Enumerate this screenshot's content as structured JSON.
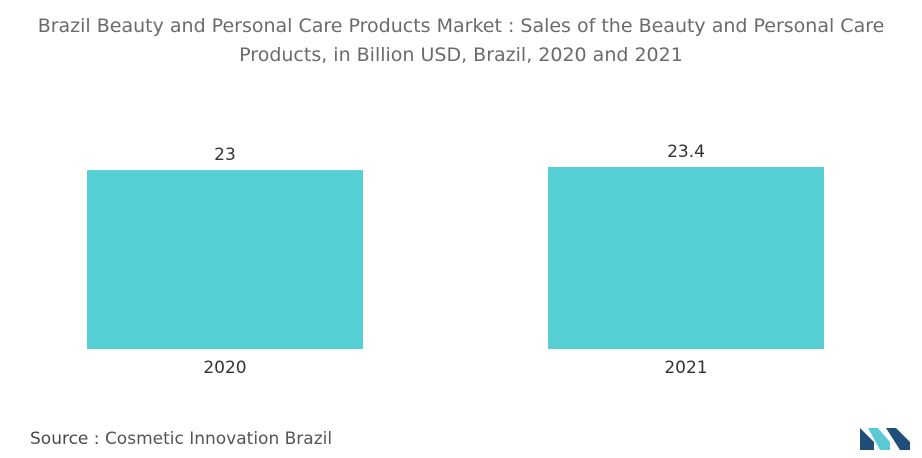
{
  "chart_data": {
    "type": "bar",
    "title_lines": [
      "Brazil Beauty and Personal Care Products Market : Sales of the Beauty and Personal Care",
      "Products, in Billion USD, Brazil, 2020 and 2021"
    ],
    "categories": [
      "2020",
      "2021"
    ],
    "values": [
      23,
      23.4
    ],
    "value_labels": [
      "23",
      "23.4"
    ],
    "ylim": [
      0,
      23.4
    ],
    "grid": false,
    "bar_color": "#56cfd4"
  },
  "source": {
    "label": "Source :",
    "text": "Cosmetic Innovation Brazil"
  },
  "logo": {
    "icon": "mordor-intelligence-logo-icon",
    "color_dark": "#1f4e79",
    "color_light": "#5bc8d6"
  }
}
